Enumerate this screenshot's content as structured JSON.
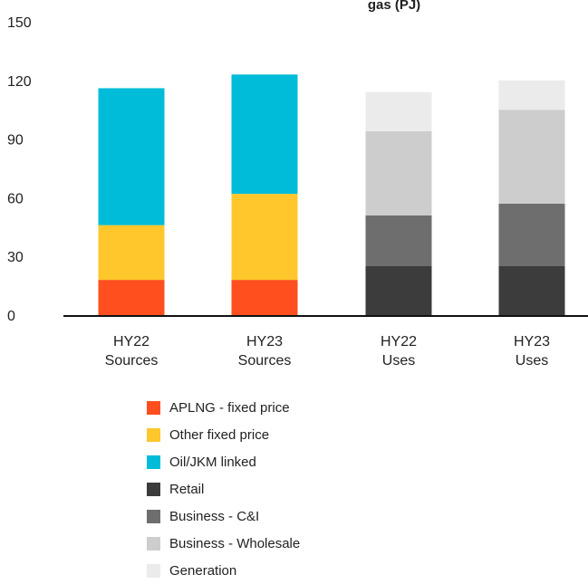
{
  "chart_data": {
    "type": "bar",
    "stacked": true,
    "title": "gas (PJ)",
    "xlabel": "",
    "ylabel": "",
    "ylim": [
      0,
      150
    ],
    "yticks": [
      0,
      30,
      60,
      90,
      120,
      150
    ],
    "categories": [
      [
        "HY22",
        "Sources"
      ],
      [
        "HY23",
        "Sources"
      ],
      [
        "HY22",
        "Uses"
      ],
      [
        "HY23",
        "Uses"
      ]
    ],
    "series": [
      {
        "name": "APLNG - fixed price",
        "color": "#ff4f1f",
        "values": [
          18,
          18,
          0,
          0
        ]
      },
      {
        "name": "Other fixed price",
        "color": "#ffc72c",
        "values": [
          28,
          44,
          0,
          0
        ]
      },
      {
        "name": "Oil/JKM linked",
        "color": "#00bcd9",
        "values": [
          70,
          61,
          0,
          0
        ]
      },
      {
        "name": "Retail",
        "color": "#3c3c3c",
        "values": [
          0,
          0,
          25,
          25
        ]
      },
      {
        "name": "Business - C&I",
        "color": "#6e6e6e",
        "values": [
          0,
          0,
          26,
          32
        ]
      },
      {
        "name": "Business - Wholesale",
        "color": "#cdcdcd",
        "values": [
          0,
          0,
          43,
          48
        ]
      },
      {
        "name": "Generation",
        "color": "#ebebeb",
        "values": [
          0,
          0,
          20,
          15
        ]
      }
    ],
    "grid": false,
    "legend_position": "bottom-left"
  }
}
